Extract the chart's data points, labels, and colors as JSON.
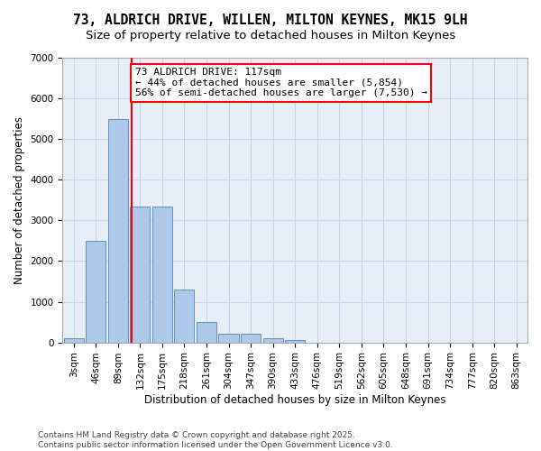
{
  "title_line1": "73, ALDRICH DRIVE, WILLEN, MILTON KEYNES, MK15 9LH",
  "title_line2": "Size of property relative to detached houses in Milton Keynes",
  "xlabel": "Distribution of detached houses by size in Milton Keynes",
  "ylabel": "Number of detached properties",
  "bar_values": [
    100,
    2500,
    5500,
    3350,
    3350,
    1300,
    500,
    220,
    220,
    100,
    50,
    0,
    0,
    0,
    0,
    0,
    0,
    0,
    0,
    0,
    0
  ],
  "categories": [
    "3sqm",
    "46sqm",
    "89sqm",
    "132sqm",
    "175sqm",
    "218sqm",
    "261sqm",
    "304sqm",
    "347sqm",
    "390sqm",
    "433sqm",
    "476sqm",
    "519sqm",
    "562sqm",
    "605sqm",
    "648sqm",
    "691sqm",
    "734sqm",
    "777sqm",
    "820sqm",
    "863sqm"
  ],
  "bar_color": "#aec8e8",
  "bar_edge_color": "#5a8fc0",
  "vline_pos": 2.62,
  "vline_color": "red",
  "annotation_text": "73 ALDRICH DRIVE: 117sqm\n← 44% of detached houses are smaller (5,854)\n56% of semi-detached houses are larger (7,530) →",
  "annotation_box_color": "white",
  "annotation_box_edge": "red",
  "ylim": [
    0,
    7000
  ],
  "yticks": [
    0,
    1000,
    2000,
    3000,
    4000,
    5000,
    6000,
    7000
  ],
  "grid_color": "#c8d4e8",
  "bg_color": "#e8eef8",
  "footer": "Contains HM Land Registry data © Crown copyright and database right 2025.\nContains public sector information licensed under the Open Government Licence v3.0.",
  "title_fontsize": 10.5,
  "subtitle_fontsize": 9.5,
  "axis_label_fontsize": 8.5,
  "tick_fontsize": 7.5,
  "annotation_fontsize": 8,
  "footer_fontsize": 6.5
}
